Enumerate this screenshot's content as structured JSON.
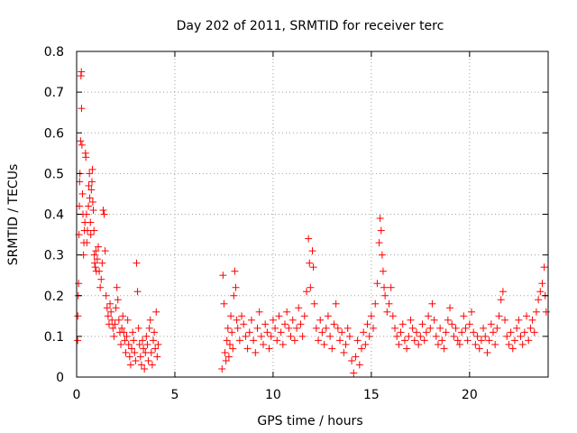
{
  "chart_data": {
    "type": "scatter",
    "title": "Day 202 of 2011, SRMTID for receiver terc",
    "xlabel": "GPS time / hours",
    "ylabel": "SRMTID / TECUs",
    "xlim": [
      0,
      24
    ],
    "ylim": [
      0,
      0.8
    ],
    "grid": true,
    "marker": "+",
    "color": "#ff0000",
    "xticks": [
      {
        "value": 0,
        "label": "0"
      },
      {
        "value": 5,
        "label": "5"
      },
      {
        "value": 10,
        "label": "10"
      },
      {
        "value": 15,
        "label": "15"
      },
      {
        "value": 20,
        "label": "20"
      }
    ],
    "yticks": [
      {
        "value": 0,
        "label": "0"
      },
      {
        "value": 0.1,
        "label": "0.1"
      },
      {
        "value": 0.2,
        "label": "0.2"
      },
      {
        "value": 0.3,
        "label": "0.3"
      },
      {
        "value": 0.4,
        "label": "0.4"
      },
      {
        "value": 0.5,
        "label": "0.5"
      },
      {
        "value": 0.6,
        "label": "0.6"
      },
      {
        "value": 0.7,
        "label": "0.7"
      },
      {
        "value": 0.8,
        "label": "0.8"
      }
    ],
    "series": [
      {
        "name": "SRMTID",
        "points": [
          [
            0.05,
            0.09
          ],
          [
            0.06,
            0.15
          ],
          [
            0.08,
            0.2
          ],
          [
            0.1,
            0.23
          ],
          [
            0.12,
            0.35
          ],
          [
            0.14,
            0.42
          ],
          [
            0.15,
            0.48
          ],
          [
            0.17,
            0.5
          ],
          [
            0.2,
            0.58
          ],
          [
            0.22,
            0.74
          ],
          [
            0.24,
            0.75
          ],
          [
            0.25,
            0.66
          ],
          [
            0.27,
            0.57
          ],
          [
            0.3,
            0.45
          ],
          [
            0.32,
            0.4
          ],
          [
            0.35,
            0.3
          ],
          [
            0.37,
            0.33
          ],
          [
            0.4,
            0.36
          ],
          [
            0.42,
            0.38
          ],
          [
            0.45,
            0.55
          ],
          [
            0.47,
            0.54
          ],
          [
            0.5,
            0.4
          ],
          [
            0.52,
            0.33
          ],
          [
            0.55,
            0.36
          ],
          [
            0.6,
            0.42
          ],
          [
            0.62,
            0.47
          ],
          [
            0.65,
            0.5
          ],
          [
            0.67,
            0.44
          ],
          [
            0.7,
            0.38
          ],
          [
            0.72,
            0.35
          ],
          [
            0.75,
            0.46
          ],
          [
            0.78,
            0.48
          ],
          [
            0.8,
            0.51
          ],
          [
            0.82,
            0.43
          ],
          [
            0.85,
            0.41
          ],
          [
            0.88,
            0.36
          ],
          [
            0.9,
            0.3
          ],
          [
            0.92,
            0.28
          ],
          [
            0.95,
            0.27
          ],
          [
            0.98,
            0.31
          ],
          [
            1.0,
            0.26
          ],
          [
            1.05,
            0.29
          ],
          [
            1.1,
            0.32
          ],
          [
            1.15,
            0.26
          ],
          [
            1.2,
            0.22
          ],
          [
            1.25,
            0.24
          ],
          [
            1.3,
            0.28
          ],
          [
            1.35,
            0.41
          ],
          [
            1.4,
            0.4
          ],
          [
            1.45,
            0.31
          ],
          [
            1.5,
            0.2
          ],
          [
            1.55,
            0.17
          ],
          [
            1.6,
            0.15
          ],
          [
            1.65,
            0.13
          ],
          [
            1.7,
            0.18
          ],
          [
            1.75,
            0.16
          ],
          [
            1.8,
            0.14
          ],
          [
            1.85,
            0.12
          ],
          [
            1.9,
            0.1
          ],
          [
            1.95,
            0.13
          ],
          [
            2.0,
            0.17
          ],
          [
            2.05,
            0.22
          ],
          [
            2.1,
            0.19
          ],
          [
            2.15,
            0.14
          ],
          [
            2.2,
            0.11
          ],
          [
            2.25,
            0.08
          ],
          [
            2.3,
            0.12
          ],
          [
            2.35,
            0.15
          ],
          [
            2.4,
            0.11
          ],
          [
            2.45,
            0.09
          ],
          [
            2.5,
            0.06
          ],
          [
            2.55,
            0.1
          ],
          [
            2.6,
            0.14
          ],
          [
            2.65,
            0.08
          ],
          [
            2.7,
            0.05
          ],
          [
            2.75,
            0.03
          ],
          [
            2.8,
            0.07
          ],
          [
            2.85,
            0.11
          ],
          [
            2.9,
            0.09
          ],
          [
            2.95,
            0.06
          ],
          [
            3.0,
            0.04
          ],
          [
            3.05,
            0.28
          ],
          [
            3.1,
            0.21
          ],
          [
            3.15,
            0.12
          ],
          [
            3.2,
            0.08
          ],
          [
            3.25,
            0.05
          ],
          [
            3.3,
            0.03
          ],
          [
            3.35,
            0.09
          ],
          [
            3.4,
            0.07
          ],
          [
            3.45,
            0.02
          ],
          [
            3.5,
            0.06
          ],
          [
            3.55,
            0.1
          ],
          [
            3.6,
            0.08
          ],
          [
            3.65,
            0.04
          ],
          [
            3.7,
            0.12
          ],
          [
            3.75,
            0.14
          ],
          [
            3.8,
            0.06
          ],
          [
            3.85,
            0.03
          ],
          [
            3.9,
            0.09
          ],
          [
            3.95,
            0.11
          ],
          [
            4.0,
            0.07
          ],
          [
            4.05,
            0.16
          ],
          [
            4.1,
            0.05
          ],
          [
            4.15,
            0.08
          ],
          [
            7.4,
            0.02
          ],
          [
            7.45,
            0.25
          ],
          [
            7.5,
            0.18
          ],
          [
            7.55,
            0.06
          ],
          [
            7.6,
            0.04
          ],
          [
            7.65,
            0.09
          ],
          [
            7.7,
            0.12
          ],
          [
            7.75,
            0.05
          ],
          [
            7.8,
            0.08
          ],
          [
            7.85,
            0.15
          ],
          [
            7.9,
            0.11
          ],
          [
            7.95,
            0.07
          ],
          [
            8.0,
            0.2
          ],
          [
            8.05,
            0.26
          ],
          [
            8.1,
            0.22
          ],
          [
            8.15,
            0.14
          ],
          [
            8.2,
            0.12
          ],
          [
            8.3,
            0.09
          ],
          [
            8.4,
            0.15
          ],
          [
            8.5,
            0.13
          ],
          [
            8.6,
            0.1
          ],
          [
            8.7,
            0.07
          ],
          [
            8.8,
            0.11
          ],
          [
            8.9,
            0.14
          ],
          [
            9.0,
            0.09
          ],
          [
            9.1,
            0.06
          ],
          [
            9.2,
            0.12
          ],
          [
            9.3,
            0.16
          ],
          [
            9.4,
            0.1
          ],
          [
            9.5,
            0.08
          ],
          [
            9.6,
            0.13
          ],
          [
            9.7,
            0.11
          ],
          [
            9.8,
            0.07
          ],
          [
            9.9,
            0.1
          ],
          [
            10.0,
            0.14
          ],
          [
            10.1,
            0.12
          ],
          [
            10.2,
            0.09
          ],
          [
            10.3,
            0.15
          ],
          [
            10.4,
            0.11
          ],
          [
            10.5,
            0.08
          ],
          [
            10.6,
            0.13
          ],
          [
            10.7,
            0.16
          ],
          [
            10.8,
            0.12
          ],
          [
            10.9,
            0.1
          ],
          [
            11.0,
            0.14
          ],
          [
            11.1,
            0.09
          ],
          [
            11.2,
            0.12
          ],
          [
            11.3,
            0.17
          ],
          [
            11.4,
            0.13
          ],
          [
            11.5,
            0.1
          ],
          [
            11.6,
            0.15
          ],
          [
            11.7,
            0.21
          ],
          [
            11.8,
            0.34
          ],
          [
            11.85,
            0.28
          ],
          [
            11.9,
            0.22
          ],
          [
            12.0,
            0.31
          ],
          [
            12.05,
            0.27
          ],
          [
            12.1,
            0.18
          ],
          [
            12.2,
            0.12
          ],
          [
            12.3,
            0.09
          ],
          [
            12.4,
            0.14
          ],
          [
            12.5,
            0.11
          ],
          [
            12.6,
            0.08
          ],
          [
            12.7,
            0.12
          ],
          [
            12.8,
            0.15
          ],
          [
            12.9,
            0.1
          ],
          [
            13.0,
            0.07
          ],
          [
            13.1,
            0.13
          ],
          [
            13.2,
            0.18
          ],
          [
            13.3,
            0.12
          ],
          [
            13.4,
            0.09
          ],
          [
            13.5,
            0.11
          ],
          [
            13.6,
            0.06
          ],
          [
            13.7,
            0.08
          ],
          [
            13.8,
            0.12
          ],
          [
            13.9,
            0.1
          ],
          [
            14.0,
            0.04
          ],
          [
            14.1,
            0.01
          ],
          [
            14.2,
            0.05
          ],
          [
            14.3,
            0.09
          ],
          [
            14.4,
            0.03
          ],
          [
            14.5,
            0.07
          ],
          [
            14.6,
            0.11
          ],
          [
            14.7,
            0.08
          ],
          [
            14.8,
            0.13
          ],
          [
            14.9,
            0.1
          ],
          [
            15.0,
            0.15
          ],
          [
            15.1,
            0.12
          ],
          [
            15.2,
            0.18
          ],
          [
            15.3,
            0.23
          ],
          [
            15.4,
            0.33
          ],
          [
            15.45,
            0.39
          ],
          [
            15.5,
            0.36
          ],
          [
            15.55,
            0.3
          ],
          [
            15.6,
            0.26
          ],
          [
            15.65,
            0.22
          ],
          [
            15.7,
            0.2
          ],
          [
            15.8,
            0.16
          ],
          [
            15.9,
            0.18
          ],
          [
            16.0,
            0.22
          ],
          [
            16.1,
            0.15
          ],
          [
            16.2,
            0.12
          ],
          [
            16.3,
            0.1
          ],
          [
            16.4,
            0.08
          ],
          [
            16.5,
            0.11
          ],
          [
            16.6,
            0.13
          ],
          [
            16.7,
            0.09
          ],
          [
            16.8,
            0.07
          ],
          [
            16.9,
            0.1
          ],
          [
            17.0,
            0.14
          ],
          [
            17.1,
            0.12
          ],
          [
            17.2,
            0.09
          ],
          [
            17.3,
            0.11
          ],
          [
            17.4,
            0.08
          ],
          [
            17.5,
            0.1
          ],
          [
            17.6,
            0.13
          ],
          [
            17.7,
            0.09
          ],
          [
            17.8,
            0.11
          ],
          [
            17.9,
            0.15
          ],
          [
            18.0,
            0.12
          ],
          [
            18.1,
            0.18
          ],
          [
            18.2,
            0.14
          ],
          [
            18.3,
            0.1
          ],
          [
            18.4,
            0.08
          ],
          [
            18.5,
            0.12
          ],
          [
            18.6,
            0.09
          ],
          [
            18.7,
            0.07
          ],
          [
            18.8,
            0.11
          ],
          [
            18.9,
            0.14
          ],
          [
            19.0,
            0.17
          ],
          [
            19.1,
            0.13
          ],
          [
            19.2,
            0.1
          ],
          [
            19.3,
            0.12
          ],
          [
            19.4,
            0.09
          ],
          [
            19.5,
            0.08
          ],
          [
            19.6,
            0.11
          ],
          [
            19.7,
            0.15
          ],
          [
            19.8,
            0.12
          ],
          [
            19.9,
            0.09
          ],
          [
            20.0,
            0.13
          ],
          [
            20.1,
            0.16
          ],
          [
            20.2,
            0.11
          ],
          [
            20.3,
            0.08
          ],
          [
            20.4,
            0.1
          ],
          [
            20.5,
            0.07
          ],
          [
            20.6,
            0.09
          ],
          [
            20.7,
            0.12
          ],
          [
            20.8,
            0.1
          ],
          [
            20.9,
            0.06
          ],
          [
            21.0,
            0.09
          ],
          [
            21.1,
            0.13
          ],
          [
            21.2,
            0.11
          ],
          [
            21.3,
            0.08
          ],
          [
            21.4,
            0.12
          ],
          [
            21.5,
            0.15
          ],
          [
            21.6,
            0.19
          ],
          [
            21.7,
            0.21
          ],
          [
            21.8,
            0.14
          ],
          [
            21.9,
            0.1
          ],
          [
            22.0,
            0.08
          ],
          [
            22.1,
            0.11
          ],
          [
            22.2,
            0.07
          ],
          [
            22.3,
            0.09
          ],
          [
            22.4,
            0.12
          ],
          [
            22.5,
            0.14
          ],
          [
            22.6,
            0.1
          ],
          [
            22.7,
            0.08
          ],
          [
            22.8,
            0.11
          ],
          [
            22.9,
            0.15
          ],
          [
            23.0,
            0.09
          ],
          [
            23.1,
            0.12
          ],
          [
            23.2,
            0.14
          ],
          [
            23.3,
            0.11
          ],
          [
            23.4,
            0.16
          ],
          [
            23.5,
            0.19
          ],
          [
            23.6,
            0.21
          ],
          [
            23.7,
            0.23
          ],
          [
            23.8,
            0.27
          ],
          [
            23.85,
            0.2
          ],
          [
            23.9,
            0.16
          ]
        ]
      }
    ]
  }
}
